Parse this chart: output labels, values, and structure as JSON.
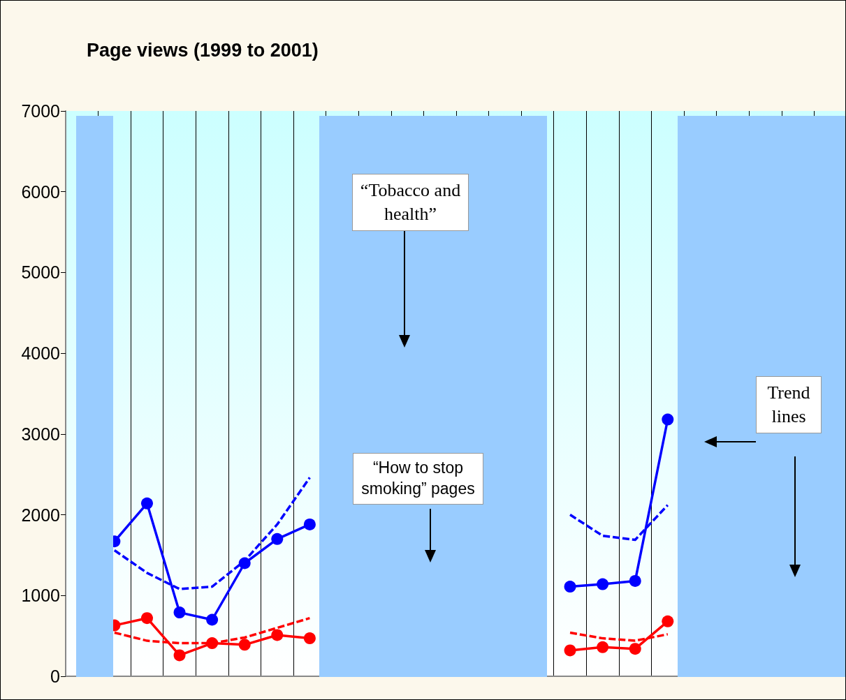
{
  "chart_data": {
    "type": "line",
    "title": "Page views (1999 to 2001)",
    "categories": [
      null,
      null,
      null,
      null,
      null,
      null,
      null,
      null,
      null,
      null,
      null,
      null,
      null,
      null,
      null,
      null,
      null,
      null,
      null,
      null,
      null,
      null,
      null,
      null
    ],
    "series": [
      {
        "color": "#0000ff",
        "values": [
          null,
          1670,
          2140,
          790,
          700,
          1400,
          1700,
          1880,
          null,
          null,
          null,
          null,
          null,
          null,
          null,
          1110,
          1140,
          1180,
          3180,
          null,
          null,
          null,
          null,
          null
        ]
      },
      {
        "color": "#ff0000",
        "values": [
          null,
          630,
          720,
          260,
          410,
          390,
          510,
          470,
          null,
          null,
          null,
          null,
          null,
          null,
          null,
          320,
          360,
          340,
          680,
          null,
          null,
          null,
          null,
          null
        ]
      },
      {
        "color": "#0000ff",
        "marker": "none",
        "line_style": "dashed",
        "values": [
          null,
          1560,
          1280,
          1080,
          1110,
          1430,
          1880,
          2460,
          null,
          null,
          null,
          null,
          null,
          null,
          null,
          2000,
          1740,
          1690,
          2120,
          null,
          null,
          null,
          null,
          null
        ]
      },
      {
        "color": "#ff0000",
        "marker": "none",
        "line_style": "dashed",
        "values": [
          null,
          540,
          440,
          410,
          410,
          480,
          600,
          720,
          null,
          null,
          null,
          null,
          null,
          null,
          null,
          540,
          470,
          440,
          520,
          null,
          null,
          null,
          null,
          null
        ]
      }
    ],
    "ylim": [
      0,
      7000
    ],
    "yticks": [
      0,
      1000,
      2000,
      3000,
      4000,
      5000,
      6000,
      7000
    ],
    "grid": "x",
    "marker": "circle",
    "line_style": "solid",
    "annotations": [
      "“Tobacco and health”",
      "“How to stop smoking” pages",
      "Trend lines"
    ]
  }
}
